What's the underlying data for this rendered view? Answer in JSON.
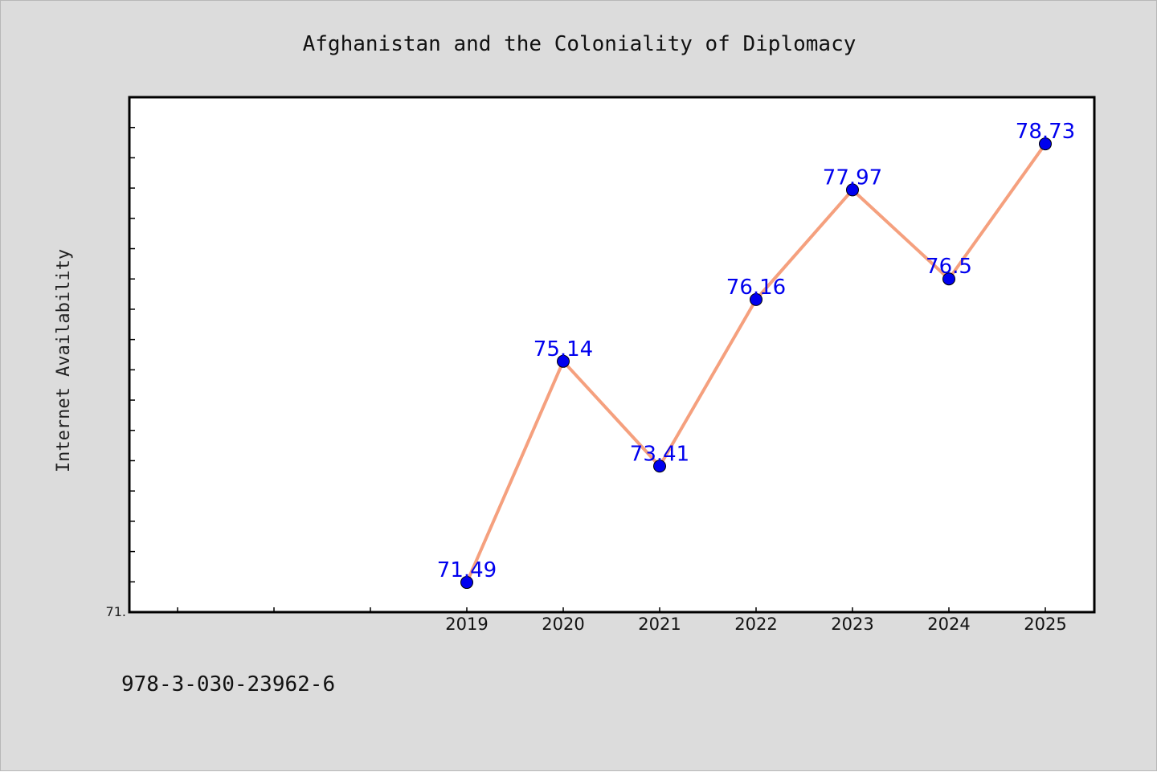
{
  "footer": {
    "code": "978-3-030-23962-6"
  },
  "chart_data": {
    "type": "line",
    "title": "Afghanistan and the Coloniality of Diplomacy",
    "xlabel": "",
    "ylabel": "Internet Availability",
    "categories": [
      "2019",
      "2020",
      "2021",
      "2022",
      "2023",
      "2024",
      "2025"
    ],
    "series": [
      {
        "values": [
          71.49,
          75.14,
          73.41,
          76.16,
          77.97,
          76.5,
          78.73
        ],
        "line_color": "#f5a07e",
        "marker_color": "#0000ee"
      }
    ],
    "data_labels": [
      "71.49",
      "75.14",
      "73.41",
      "76.16",
      "77.97",
      "76.5",
      "78.73"
    ],
    "y_origin_label": "71.",
    "ylim": [
      71.0,
      79.5
    ],
    "y_minor_step": 0.5,
    "x_slots": 10,
    "first_category_slot": 3,
    "grid": false,
    "legend": "none",
    "colors": {
      "background": "#dcdcdc",
      "plot_background": "#ffffff",
      "line": "#f5a07e",
      "marker": "#0000ee",
      "data_label": "#0000ee"
    }
  }
}
